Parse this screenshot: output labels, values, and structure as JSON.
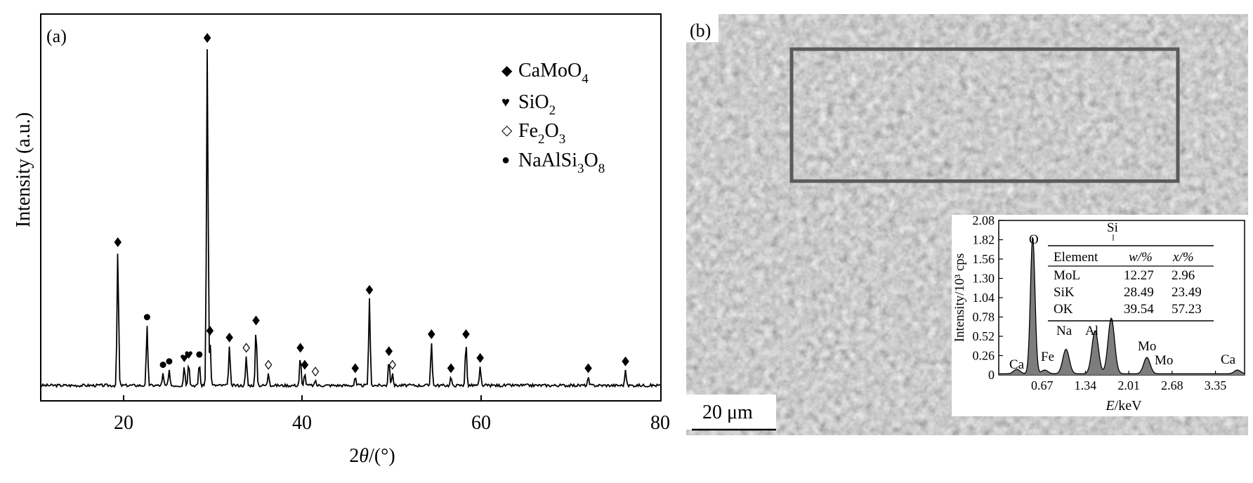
{
  "panel_a": {
    "label": "(a)",
    "ylabel": "Intensity (a.u.)",
    "xlabel_base": "2",
    "xlabel_theta": "θ",
    "xlabel_unit": "/(°)",
    "xticks": [
      "20",
      "40",
      "60",
      "80"
    ],
    "legend": [
      {
        "symbol": "◆",
        "base": "CaMoO",
        "sub": "4",
        "tail": ""
      },
      {
        "symbol": "♥",
        "base": "SiO",
        "sub": "2",
        "tail": ""
      },
      {
        "symbol": "◇",
        "base": "Fe",
        "sub": "2",
        "tail": "O",
        "sub2": "3"
      },
      {
        "symbol": "●",
        "base": "NaAlSi",
        "sub": "3",
        "tail": "O",
        "sub2": "8"
      }
    ]
  },
  "panel_b": {
    "label": "(b)",
    "scale_bar": "20  μm",
    "inset": {
      "ylabel": "Intensity/10³ cps",
      "xlabel_italic": "E",
      "xlabel_unit": "/keV",
      "yticks": [
        "0",
        "0.26",
        "0.52",
        "0.78",
        "1.04",
        "1.30",
        "1.56",
        "1.82",
        "2.08"
      ],
      "xticks": [
        "0.67",
        "1.34",
        "2.01",
        "2.68",
        "3.35"
      ],
      "peak_labels": [
        "O",
        "Si",
        "Na",
        "Al",
        "Fe",
        "Ca",
        "Mo",
        "Mo",
        "Ca"
      ],
      "table": {
        "headers": [
          "Element",
          "w/%",
          "x/%"
        ],
        "rows": [
          [
            "MoL",
            "12.27",
            "2.96"
          ],
          [
            "SiK",
            "28.49",
            "23.49"
          ],
          [
            "OK",
            "39.54",
            "57.23"
          ]
        ]
      }
    }
  },
  "chart_data": [
    {
      "type": "line",
      "title": "",
      "xlabel": "2θ/(°)",
      "ylabel": "Intensity (a.u.)",
      "xlim": [
        10,
        80
      ],
      "grid": false,
      "legend_position": "top-right",
      "peaks": [
        {
          "x": 18.7,
          "y": 40,
          "phase": "CaMoO4"
        },
        {
          "x": 22.0,
          "y": 18,
          "phase": "NaAlSi3O8"
        },
        {
          "x": 23.8,
          "y": 4,
          "phase": "NaAlSi3O8"
        },
        {
          "x": 24.5,
          "y": 5,
          "phase": "NaAlSi3O8"
        },
        {
          "x": 26.2,
          "y": 6,
          "phase": "SiO2"
        },
        {
          "x": 26.7,
          "y": 7,
          "phase": "SiO2"
        },
        {
          "x": 27.9,
          "y": 7,
          "phase": "NaAlSi3O8"
        },
        {
          "x": 28.8,
          "y": 100,
          "phase": "CaMoO4"
        },
        {
          "x": 29.1,
          "y": 14,
          "phase": "CaMoO4"
        },
        {
          "x": 31.3,
          "y": 12,
          "phase": "CaMoO4"
        },
        {
          "x": 33.2,
          "y": 9,
          "phase": "Fe2O3"
        },
        {
          "x": 34.3,
          "y": 17,
          "phase": "CaMoO4"
        },
        {
          "x": 35.7,
          "y": 4,
          "phase": "Fe2O3"
        },
        {
          "x": 39.3,
          "y": 9,
          "phase": "CaMoO4"
        },
        {
          "x": 39.8,
          "y": 4,
          "phase": "CaMoO4"
        },
        {
          "x": 41.0,
          "y": 2,
          "phase": "Fe2O3"
        },
        {
          "x": 45.5,
          "y": 3,
          "phase": "CaMoO4"
        },
        {
          "x": 47.1,
          "y": 26,
          "phase": "CaMoO4"
        },
        {
          "x": 49.3,
          "y": 8,
          "phase": "CaMoO4"
        },
        {
          "x": 49.7,
          "y": 4,
          "phase": "Fe2O3"
        },
        {
          "x": 54.1,
          "y": 13,
          "phase": "CaMoO4"
        },
        {
          "x": 56.3,
          "y": 3,
          "phase": "CaMoO4"
        },
        {
          "x": 58.0,
          "y": 13,
          "phase": "CaMoO4"
        },
        {
          "x": 59.6,
          "y": 6,
          "phase": "CaMoO4"
        },
        {
          "x": 71.8,
          "y": 3,
          "phase": "CaMoO4"
        },
        {
          "x": 76.0,
          "y": 5,
          "phase": "CaMoO4"
        }
      ]
    },
    {
      "type": "line",
      "title": "",
      "xlabel": "E/keV",
      "ylabel": "Intensity/10³ cps",
      "xlim": [
        0,
        3.8
      ],
      "ylim": [
        0,
        2.08
      ],
      "peaks": [
        {
          "x": 0.28,
          "y": 0.06,
          "label": "Ca"
        },
        {
          "x": 0.525,
          "y": 1.85,
          "label": "O"
        },
        {
          "x": 0.71,
          "y": 0.05,
          "label": "Fe"
        },
        {
          "x": 1.04,
          "y": 0.33,
          "label": "Na"
        },
        {
          "x": 1.49,
          "y": 0.58,
          "label": "Al"
        },
        {
          "x": 1.74,
          "y": 0.75,
          "label": "Si"
        },
        {
          "x": 2.29,
          "y": 0.22,
          "label": "Mo"
        },
        {
          "x": 3.69,
          "y": 0.05,
          "label": "Ca"
        }
      ]
    }
  ]
}
